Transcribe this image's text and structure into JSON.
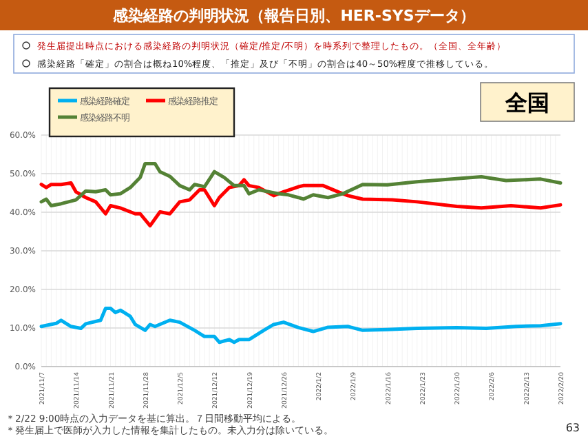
{
  "chart_data": {
    "type": "line",
    "title": "感染経路の判明状況（報告日別、HER-SYSデータ）",
    "subtitle": "発生届提出時点における感染経路の判明状況（確定/推定/不明）を時系列で整理したもの。（全国、全年齢）",
    "annotations": [
      "感染経路「確定」の割合は概ね10%程度、「推定」及び「不明」の割合は40～50%程度で推移している。",
      "全国",
      "＊2/22 9:00時点の入力データを基に算出。７日間移動平均による。",
      "＊発生届上で医師が入力した情報を集計したもの。未入力分は除いている。",
      "63"
    ],
    "xlim": [
      "2021-11-07",
      "2022-02-20"
    ],
    "xticks": [
      {
        "value": "2021-11-07",
        "label": "2021/11/7"
      },
      {
        "value": "2021-11-14",
        "label": "2021/11/14"
      },
      {
        "value": "2021-11-21",
        "label": "2021/11/21"
      },
      {
        "value": "2021-11-28",
        "label": "2021/11/28"
      },
      {
        "value": "2021-12-05",
        "label": "2021/12/5"
      },
      {
        "value": "2021-12-12",
        "label": "2021/12/12"
      },
      {
        "value": "2021-12-19",
        "label": "2021/12/19"
      },
      {
        "value": "2021-12-26",
        "label": "2021/12/26"
      },
      {
        "value": "2022-01-02",
        "label": "2022/1/2"
      },
      {
        "value": "2022-01-09",
        "label": "2022/1/9"
      },
      {
        "value": "2022-01-16",
        "label": "2022/1/16"
      },
      {
        "value": "2022-01-23",
        "label": "2022/1/23"
      },
      {
        "value": "2022-01-30",
        "label": "2022/1/30"
      },
      {
        "value": "2022-02-06",
        "label": "2022/2/6"
      },
      {
        "value": "2022-02-13",
        "label": "2022/2/13"
      },
      {
        "value": "2022-02-20",
        "label": "2022/2/20"
      }
    ],
    "ylim": [
      0,
      60
    ],
    "yticks": [
      {
        "value": 0,
        "label": "0.0%"
      },
      {
        "value": 10,
        "label": "10.0%"
      },
      {
        "value": 20,
        "label": "20.0%"
      },
      {
        "value": 30,
        "label": "30.0%"
      },
      {
        "value": 40,
        "label": "40.0%"
      },
      {
        "value": 50,
        "label": "50.0%"
      },
      {
        "value": 60,
        "label": "60.0%"
      }
    ],
    "grid": true,
    "legend": "top left",
    "marker": "none",
    "line_style": "solid",
    "series": [
      {
        "name": "感染経路確定",
        "color": "#00b0f0",
        "x": [
          "2021-11-07",
          "2021-11-10",
          "2021-11-11",
          "2021-11-13",
          "2021-11-15",
          "2021-11-16",
          "2021-11-19",
          "2021-11-20",
          "2021-11-21",
          "2021-11-22",
          "2021-11-23",
          "2021-11-25",
          "2021-11-26",
          "2021-11-28",
          "2021-11-29",
          "2021-11-30",
          "2021-12-03",
          "2021-12-05",
          "2021-12-08",
          "2021-12-10",
          "2021-12-12",
          "2021-12-13",
          "2021-12-15",
          "2021-12-16",
          "2021-12-17",
          "2021-12-19",
          "2021-12-22",
          "2021-12-24",
          "2021-12-26",
          "2021-12-29",
          "2022-01-01",
          "2022-01-04",
          "2022-01-08",
          "2022-01-11",
          "2022-01-16",
          "2022-01-22",
          "2022-01-30",
          "2022-02-05",
          "2022-02-11",
          "2022-02-16",
          "2022-02-20"
        ],
        "values": [
          10.4,
          11.2,
          12,
          10.4,
          9.9,
          11.1,
          12,
          15.1,
          15.1,
          14,
          14.6,
          13,
          10.9,
          9.4,
          10.9,
          10.4,
          12,
          11.5,
          9.4,
          7.8,
          7.8,
          6.3,
          7,
          6.3,
          7,
          7,
          9.4,
          10.9,
          11.5,
          10.1,
          9.1,
          10.2,
          10.4,
          9.4,
          9.6,
          9.9,
          10.1,
          9.9,
          10.4,
          10.6,
          11.1
        ]
      },
      {
        "name": "感染経路推定",
        "color": "#ff0000",
        "x": [
          "2021-11-07",
          "2021-11-08",
          "2021-11-09",
          "2021-11-11",
          "2021-11-13",
          "2021-11-14",
          "2021-11-16",
          "2021-11-18",
          "2021-11-20",
          "2021-11-21",
          "2021-11-23",
          "2021-11-26",
          "2021-11-27",
          "2021-11-29",
          "2021-12-01",
          "2021-12-03",
          "2021-12-05",
          "2021-12-07",
          "2021-12-09",
          "2021-12-10",
          "2021-12-12",
          "2021-12-13",
          "2021-12-15",
          "2021-12-17",
          "2021-12-18",
          "2021-12-19",
          "2021-12-21",
          "2021-12-24",
          "2021-12-26",
          "2021-12-29",
          "2021-12-30",
          "2022-01-03",
          "2022-01-06",
          "2022-01-08",
          "2022-01-11",
          "2022-01-17",
          "2022-01-22",
          "2022-01-30",
          "2022-02-04",
          "2022-02-10",
          "2022-02-16",
          "2022-02-20"
        ],
        "values": [
          47.2,
          46.4,
          47.2,
          47.2,
          47.6,
          45.3,
          43.8,
          42.7,
          39.6,
          41.7,
          41.1,
          39.6,
          39.6,
          36.5,
          40.1,
          39.6,
          42.7,
          43.2,
          45.8,
          45.8,
          41.7,
          43.8,
          46.4,
          46.9,
          48.4,
          46.9,
          46.4,
          44.3,
          45.3,
          46.6,
          46.9,
          46.9,
          45.3,
          44.3,
          43.4,
          43.2,
          42.7,
          41.5,
          41.1,
          41.7,
          41.1,
          41.9
        ]
      },
      {
        "name": "感染経路不明",
        "color": "#548235",
        "x": [
          "2021-11-07",
          "2021-11-08",
          "2021-11-09",
          "2021-11-11",
          "2021-11-14",
          "2021-11-16",
          "2021-11-18",
          "2021-11-20",
          "2021-11-21",
          "2021-11-23",
          "2021-11-25",
          "2021-11-27",
          "2021-11-28",
          "2021-11-30",
          "2021-12-01",
          "2021-12-03",
          "2021-12-05",
          "2021-12-07",
          "2021-12-08",
          "2021-12-10",
          "2021-12-12",
          "2021-12-14",
          "2021-12-16",
          "2021-12-18",
          "2021-12-19",
          "2021-12-21",
          "2021-12-25",
          "2021-12-27",
          "2021-12-29",
          "2021-12-30",
          "2022-01-01",
          "2022-01-04",
          "2022-01-07",
          "2022-01-11",
          "2022-01-16",
          "2022-01-22",
          "2022-01-30",
          "2022-02-04",
          "2022-02-09",
          "2022-02-16",
          "2022-02-20"
        ],
        "values": [
          42.7,
          43.4,
          41.7,
          42.2,
          43.2,
          45.5,
          45.3,
          45.8,
          44.5,
          44.8,
          46.4,
          49,
          52.6,
          52.6,
          50.5,
          49.3,
          46.9,
          45.8,
          47.2,
          46.6,
          50.5,
          49,
          46.9,
          46.9,
          44.8,
          45.8,
          44.8,
          44.5,
          43.8,
          43.4,
          44.5,
          43.8,
          44.8,
          47.2,
          47.1,
          47.9,
          48.7,
          49.2,
          48.2,
          48.6,
          47.6
        ]
      }
    ]
  }
}
